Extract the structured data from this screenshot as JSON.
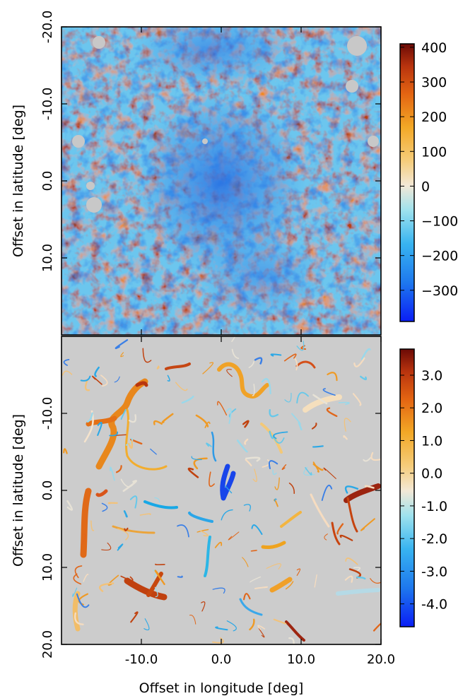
{
  "chart_data": [
    {
      "type": "heatmap",
      "title": "",
      "xlabel": "",
      "ylabel": "Offset in latitude [deg]",
      "xlim": [
        -20.0,
        20.0
      ],
      "ylim": [
        -20.0,
        20.0
      ],
      "y_inverted": true,
      "yticks": [
        {
          "value": -20.0,
          "label": "-20.0"
        },
        {
          "value": -10.0,
          "label": "-10.0"
        },
        {
          "value": 0.0,
          "label": "0.0"
        },
        {
          "value": 10.0,
          "label": "10.0"
        }
      ],
      "xticks": [
        -10.0,
        0.0,
        10.0
      ],
      "grid": false,
      "colorbar": {
        "range": [
          -390,
          410
        ],
        "ticks": [
          {
            "value": 400,
            "label": "400"
          },
          {
            "value": 300,
            "label": "300"
          },
          {
            "value": 200,
            "label": "200"
          },
          {
            "value": 100,
            "label": "100"
          },
          {
            "value": 0,
            "label": "0"
          },
          {
            "value": -100,
            "label": "−100"
          },
          {
            "value": -200,
            "label": "−200"
          },
          {
            "value": -300,
            "label": "−300"
          }
        ]
      }
    },
    {
      "type": "heatmap",
      "title": "",
      "xlabel": "Offset in longitude [deg]",
      "ylabel": "Offset in latitude [deg]",
      "xlim": [
        -20.0,
        20.0
      ],
      "ylim": [
        -20.0,
        20.0
      ],
      "y_inverted": true,
      "yticks": [
        {
          "value": -10.0,
          "label": "-10.0"
        },
        {
          "value": 0.0,
          "label": "0.0"
        },
        {
          "value": 10.0,
          "label": "10.0"
        },
        {
          "value": 20.0,
          "label": "20.0"
        }
      ],
      "xticks": [
        {
          "value": -10.0,
          "label": "-10.0"
        },
        {
          "value": 0.0,
          "label": "0.0"
        },
        {
          "value": 10.0,
          "label": "10.0"
        },
        {
          "value": 20.0,
          "label": "20.0"
        }
      ],
      "grid": false,
      "background_color": "#cccccc",
      "colorbar": {
        "range": [
          -4.7,
          3.8
        ],
        "ticks": [
          {
            "value": 3.0,
            "label": "3.0"
          },
          {
            "value": 2.0,
            "label": "2.0"
          },
          {
            "value": 1.0,
            "label": "1.0"
          },
          {
            "value": 0.0,
            "label": "0.0"
          },
          {
            "value": -1.0,
            "label": "-1.0"
          },
          {
            "value": -2.0,
            "label": "-2.0"
          },
          {
            "value": -3.0,
            "label": "-3.0"
          },
          {
            "value": -4.0,
            "label": "-4.0"
          }
        ]
      }
    }
  ]
}
